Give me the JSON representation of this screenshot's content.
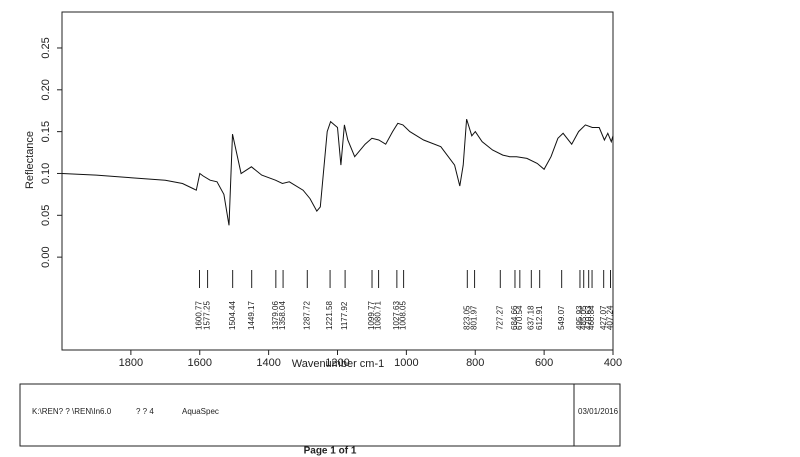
{
  "chart_data": {
    "type": "line",
    "xlabel": "Wavenumber cm-1",
    "ylabel": "Reflectance",
    "xlim": [
      2000,
      400
    ],
    "ylim": [
      -0.111,
      0.293
    ],
    "xticks": [
      1800,
      1600,
      1400,
      1200,
      1000,
      800,
      600,
      400
    ],
    "yticks": [
      {
        "value": 0,
        "label": "0.00"
      },
      {
        "value": 0.05,
        "label": "0.05"
      },
      {
        "value": 0.1,
        "label": "0.10"
      },
      {
        "value": 0.15,
        "label": "0.15"
      },
      {
        "value": 0.2,
        "label": "0.20"
      },
      {
        "value": 0.25,
        "label": "0.25"
      }
    ],
    "x": [
      2000,
      1900,
      1800,
      1700,
      1650,
      1620,
      1610,
      1600,
      1590,
      1570,
      1550,
      1530,
      1515,
      1505,
      1480,
      1450,
      1420,
      1380,
      1360,
      1340,
      1300,
      1280,
      1260,
      1250,
      1230,
      1220,
      1200,
      1190,
      1180,
      1170,
      1150,
      1120,
      1100,
      1080,
      1060,
      1040,
      1025,
      1010,
      990,
      950,
      900,
      860,
      845,
      835,
      825,
      810,
      800,
      780,
      750,
      720,
      700,
      680,
      650,
      620,
      600,
      580,
      560,
      545,
      520,
      500,
      480,
      460,
      440,
      425,
      415,
      405,
      400
    ],
    "series": [
      {
        "color": "#111111",
        "values": [
          0.1,
          0.098,
          0.095,
          0.092,
          0.088,
          0.082,
          0.08,
          0.1,
          0.097,
          0.092,
          0.09,
          0.075,
          0.038,
          0.147,
          0.1,
          0.108,
          0.098,
          0.092,
          0.088,
          0.09,
          0.08,
          0.07,
          0.055,
          0.06,
          0.15,
          0.162,
          0.155,
          0.11,
          0.158,
          0.14,
          0.12,
          0.135,
          0.142,
          0.14,
          0.135,
          0.15,
          0.16,
          0.158,
          0.15,
          0.14,
          0.132,
          0.11,
          0.085,
          0.11,
          0.165,
          0.145,
          0.15,
          0.138,
          0.128,
          0.122,
          0.12,
          0.12,
          0.118,
          0.112,
          0.105,
          0.12,
          0.142,
          0.148,
          0.135,
          0.15,
          0.158,
          0.155,
          0.155,
          0.14,
          0.148,
          0.138,
          0.145
        ]
      }
    ],
    "peaks": [
      1600.77,
      1577.25,
      1504.44,
      1449.17,
      1379.06,
      1358.04,
      1287.72,
      1221.58,
      1177.92,
      1099.77,
      1080.71,
      1027.63,
      1008.05,
      823.05,
      801.97,
      727.27,
      684.66,
      670.54,
      637.18,
      612.91,
      549.07,
      495.93,
      485.05,
      470.63,
      460.84,
      427.07,
      407.24
    ]
  },
  "footer": {
    "path": "K:\\REN? ? \\REN\\In6.0",
    "code": "? ? 4",
    "software": "AquaSpec",
    "date": "03/01/2016",
    "page": "Page 1 of 1"
  }
}
